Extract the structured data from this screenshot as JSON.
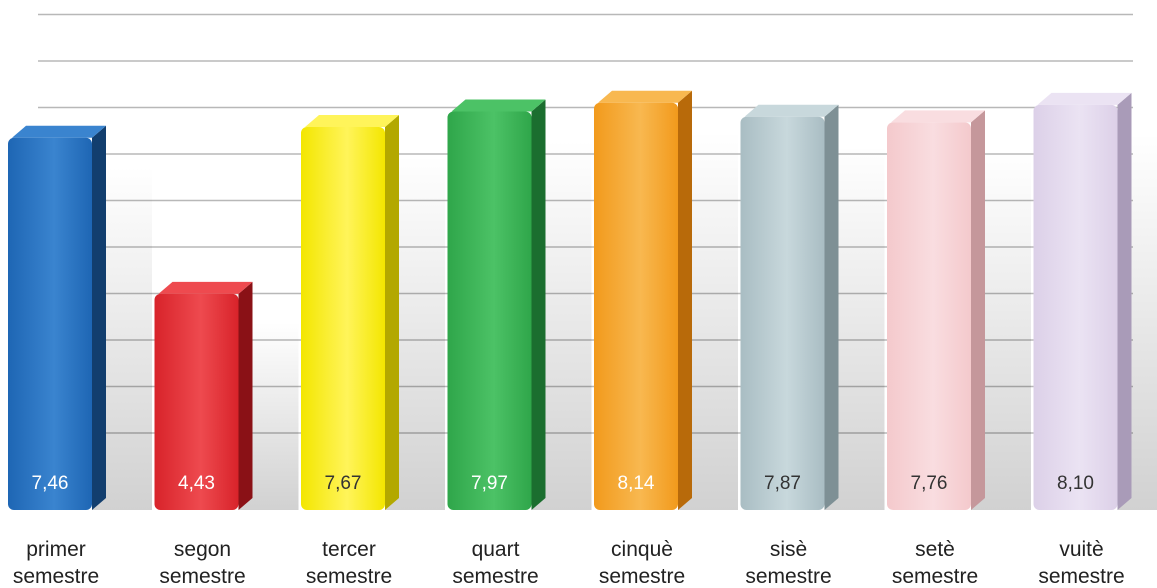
{
  "chart_data": {
    "type": "bar",
    "title": "",
    "xlabel": "",
    "ylabel": "",
    "categories": [
      [
        "primer",
        "semestre"
      ],
      [
        "segon",
        "semestre"
      ],
      [
        "tercer",
        "semestre"
      ],
      [
        "quart",
        "semestre"
      ],
      [
        "cinquè",
        "semestre"
      ],
      [
        "sisè",
        "semestre"
      ],
      [
        "setè",
        "semestre"
      ],
      [
        "vuitè",
        "semestre"
      ]
    ],
    "values": [
      7.46,
      4.43,
      7.67,
      7.97,
      8.14,
      7.87,
      7.76,
      8.1
    ],
    "value_labels": [
      "7,46",
      "4,43",
      "7,67",
      "7,97",
      "8,14",
      "7,87",
      "7,76",
      "8,10"
    ],
    "ylim": [
      0,
      10
    ],
    "grid": true,
    "legend": "none",
    "style": "3d-bars",
    "colors": [
      {
        "front": "#1e66b4",
        "side": "#123e6e",
        "top": "#3a84cf",
        "label": "#ffffff"
      },
      {
        "front": "#d8232a",
        "side": "#8a1116",
        "top": "#ee4a4f",
        "label": "#ffffff"
      },
      {
        "front": "#f3e600",
        "side": "#b3a800",
        "top": "#fff45a",
        "label": "#333333"
      },
      {
        "front": "#2fa64a",
        "side": "#1b6e2f",
        "top": "#4cc266",
        "label": "#ffffff"
      },
      {
        "front": "#f29a1c",
        "side": "#b86a0a",
        "top": "#f8b850",
        "label": "#ffffff"
      },
      {
        "front": "#a9bdc3",
        "side": "#7e9095",
        "top": "#c8d8dc",
        "label": "#333333"
      },
      {
        "front": "#f4c9cc",
        "side": "#c5979b",
        "top": "#f9dde0",
        "label": "#333333"
      },
      {
        "front": "#dcd0e8",
        "side": "#a99bb8",
        "top": "#ebe3f3",
        "label": "#333333"
      }
    ]
  }
}
